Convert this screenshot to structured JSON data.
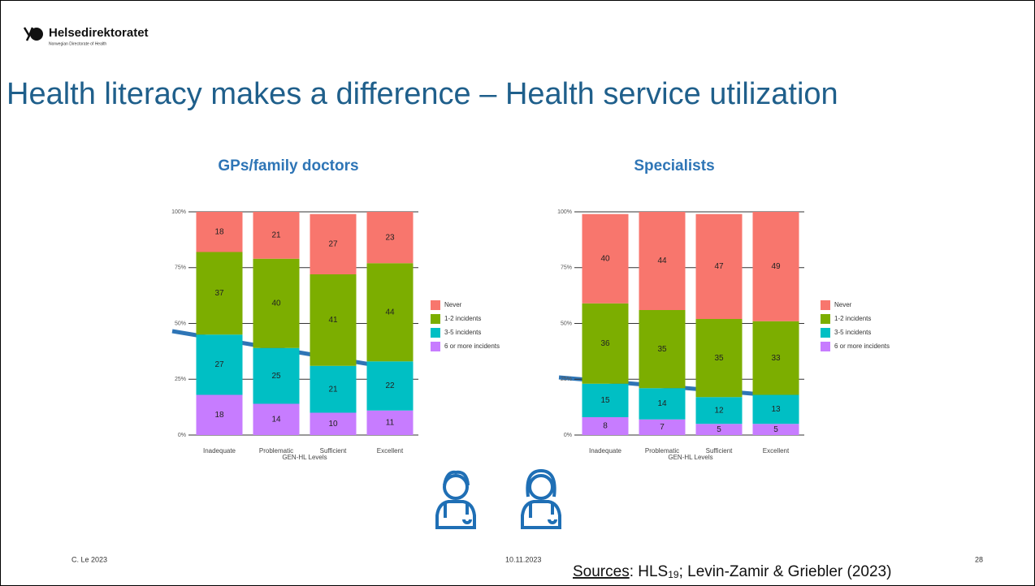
{
  "header": {
    "logo_name": "Helsedirektoratet",
    "logo_subtitle": "Norwegian Directorate of Health"
  },
  "title": "Health literacy makes a difference – Health service utilization",
  "chart_data": [
    {
      "type": "bar",
      "stacked": true,
      "title": "GPs/family doctors",
      "categories": [
        "Inadequate",
        "Problematic",
        "Sufficient",
        "Excellent"
      ],
      "x_label": "GEN-HL Levels",
      "series": [
        {
          "name": "Never",
          "color": "#f8766d",
          "values": [
            18,
            21,
            27,
            23
          ]
        },
        {
          "name": "1-2 incidents",
          "color": "#7cae00",
          "values": [
            37,
            40,
            41,
            44
          ]
        },
        {
          "name": "3-5 incidents",
          "color": "#00bfc4",
          "values": [
            27,
            25,
            21,
            22
          ]
        },
        {
          "name": "6 or more incidents",
          "color": "#c77cff",
          "values": [
            18,
            14,
            10,
            11
          ]
        }
      ],
      "ylim": [
        0,
        100
      ],
      "yticks": [
        {
          "value": 0,
          "label": "0%"
        },
        {
          "value": 25,
          "label": "25%"
        },
        {
          "value": 50,
          "label": "50%"
        },
        {
          "value": 75,
          "label": "75%"
        },
        {
          "value": 100,
          "label": "100%"
        }
      ],
      "grid": true,
      "legend": "right"
    },
    {
      "type": "bar",
      "stacked": true,
      "title": "Specialists",
      "categories": [
        "Inadequate",
        "Problematic",
        "Sufficient",
        "Excellent"
      ],
      "x_label": "GEN-HL Levels",
      "series": [
        {
          "name": "Never",
          "color": "#f8766d",
          "values": [
            40,
            44,
            47,
            49
          ]
        },
        {
          "name": "1-2 incidents",
          "color": "#7cae00",
          "values": [
            36,
            35,
            35,
            33
          ]
        },
        {
          "name": "3-5 incidents",
          "color": "#00bfc4",
          "values": [
            15,
            14,
            12,
            13
          ]
        },
        {
          "name": "6 or more incidents",
          "color": "#c77cff",
          "values": [
            8,
            7,
            5,
            5
          ]
        }
      ],
      "ylim": [
        0,
        100
      ],
      "yticks": [
        {
          "value": 0,
          "label": "0%"
        },
        {
          "value": 25,
          "label": "25%"
        },
        {
          "value": 50,
          "label": "50%"
        },
        {
          "value": 75,
          "label": "75%"
        },
        {
          "value": 100,
          "label": "100%"
        }
      ],
      "grid": true,
      "legend": "right"
    }
  ],
  "footer": {
    "author": "C. Le 2023",
    "date": "10.11.2023",
    "sources_label": "Sources",
    "sources_text_1": ": HLS",
    "sources_sub": "19",
    "sources_text_2": "; Levin-Zamir & Griebler (2023)",
    "page": "28"
  }
}
